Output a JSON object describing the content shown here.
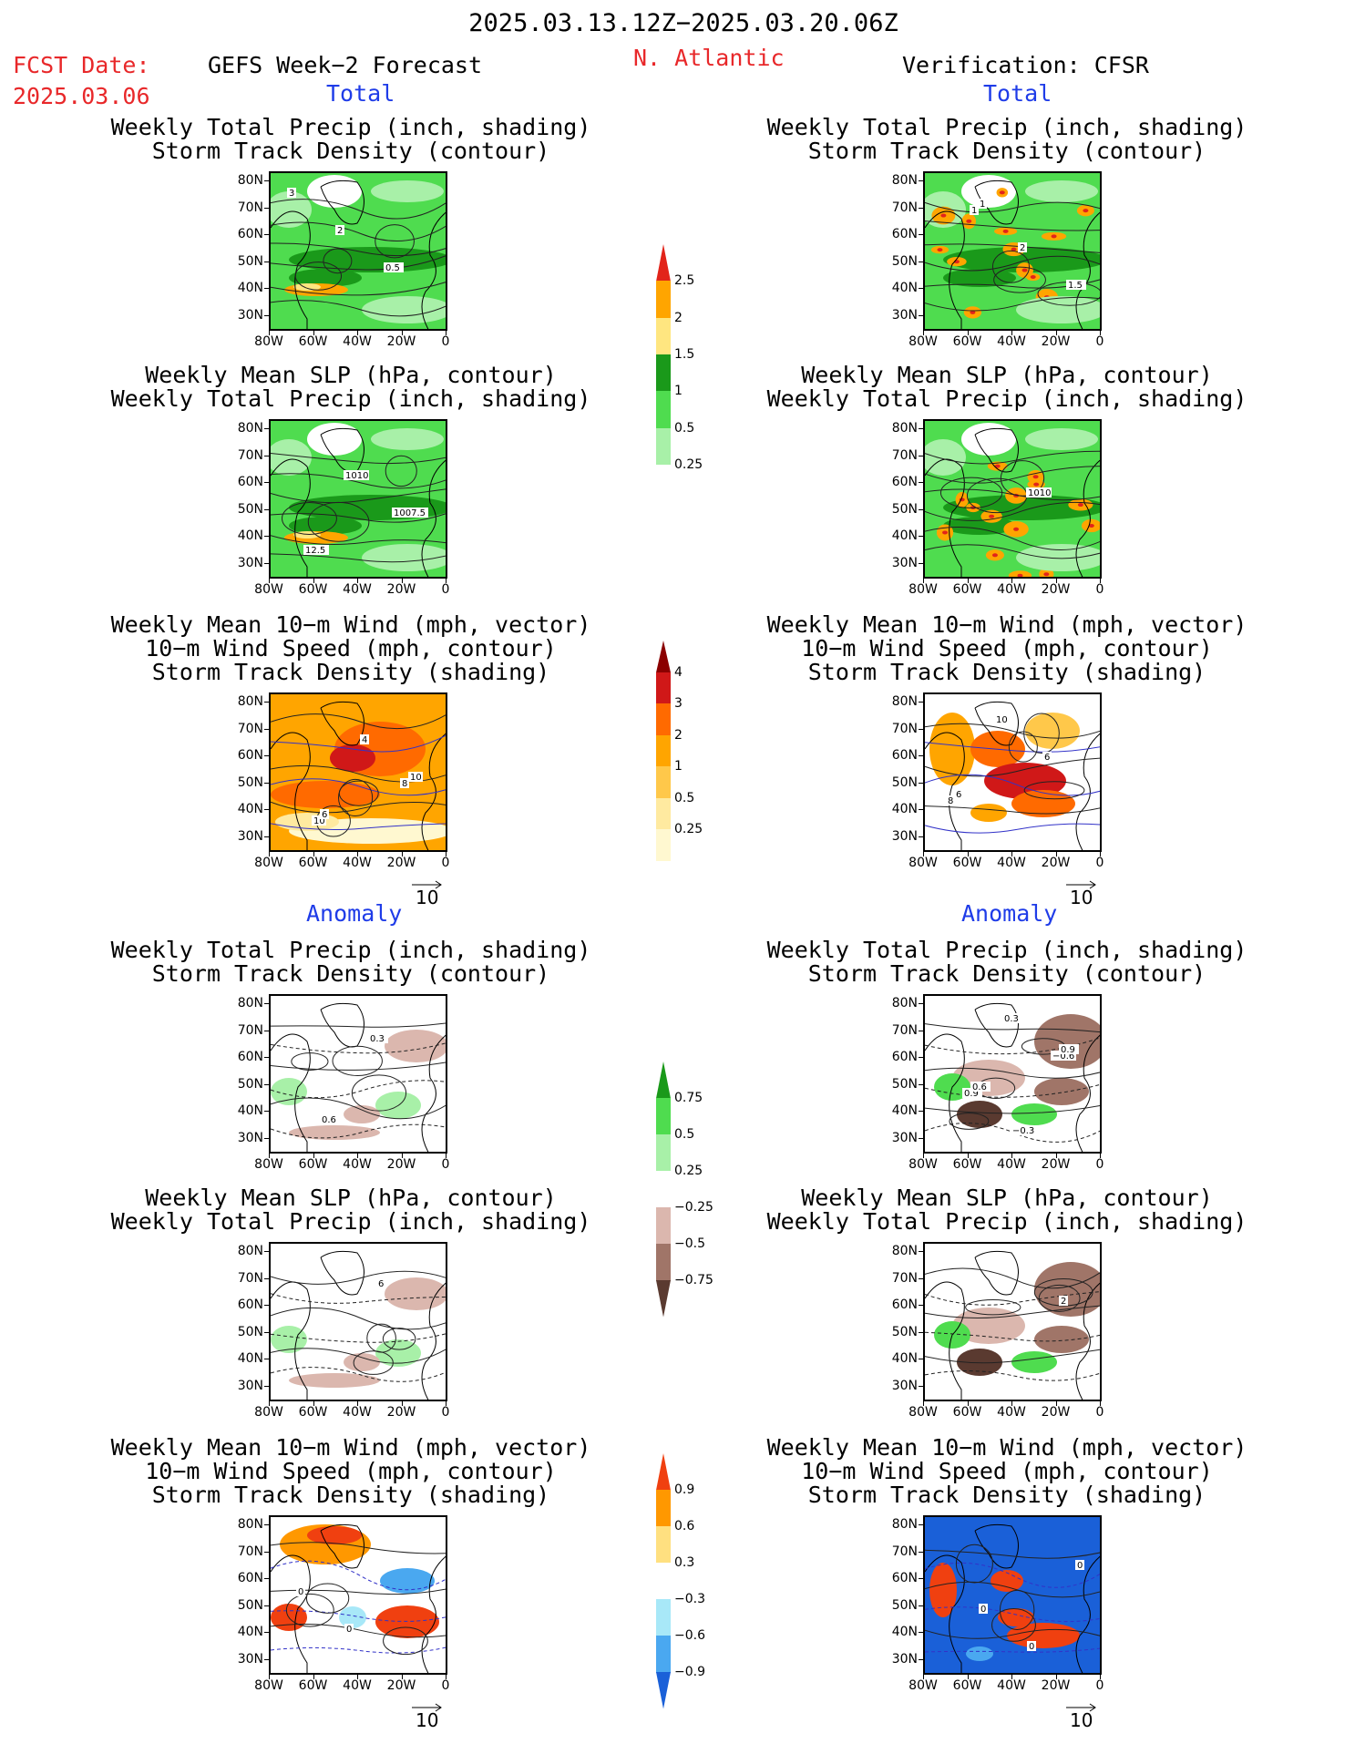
{
  "header": {
    "date_range": "2025.03.13.12Z−2025.03.20.06Z",
    "fcst_label": "FCST Date:",
    "fcst_date": "2025.03.06",
    "model_title": "GEFS Week−2 Forecast",
    "region": "N. Atlantic",
    "verification": "Verification: CFSR",
    "total_label": "Total",
    "anomaly_label": "Anomaly"
  },
  "panel_titles": {
    "precip_track": [
      "Weekly Total Precip (inch, shading)",
      "Storm Track Density (contour)"
    ],
    "slp_precip": [
      "Weekly Mean SLP (hPa, contour)",
      "Weekly Total Precip (inch, shading)"
    ],
    "wind_track": [
      "Weekly Mean 10−m Wind (mph, vector)",
      "10−m Wind Speed (mph, contour)",
      "Storm Track Density (shading)"
    ]
  },
  "axes": {
    "lat_labels": [
      "80N",
      "70N",
      "60N",
      "50N",
      "40N",
      "30N"
    ],
    "lon_labels": [
      "80W",
      "60W",
      "40W",
      "20W",
      "0"
    ]
  },
  "vector_ref": "10",
  "colorbars": {
    "precip_total": {
      "labels": [
        "2.5",
        "2",
        "1.5",
        "1",
        "0.5",
        "0.25"
      ],
      "colors": [
        "#e2241a",
        "#ffa500",
        "#ffe680",
        "#1a991a",
        "#4fdc4f",
        "#a8f0a8"
      ]
    },
    "track_total": {
      "labels": [
        "4",
        "3",
        "2",
        "1",
        "0.5",
        "0.25"
      ],
      "colors": [
        "#8b0000",
        "#d01818",
        "#ff6a00",
        "#ffa500",
        "#ffc84a",
        "#ffeaa0",
        "#fff8d0"
      ]
    },
    "precip_anom": {
      "labels": [
        "0.75",
        "0.5",
        "0.25",
        "−0.25",
        "−0.5",
        "−0.75"
      ],
      "colors": [
        "#1a991a",
        "#4fdc4f",
        "#a8f0a8",
        "#ffffff",
        "#dbb7ae",
        "#a07568",
        "#5a3a30"
      ]
    },
    "track_anom": {
      "labels": [
        "0.9",
        "0.6",
        "0.3",
        "−0.3",
        "−0.6",
        "−0.9"
      ],
      "colors": [
        "#f04010",
        "#ff9800",
        "#ffe080",
        "#ffffff",
        "#a8e8f8",
        "#4aa8f0",
        "#1a60d8"
      ]
    }
  },
  "contour_labels": {
    "f_total_precip": [
      "3",
      "2",
      "0.5"
    ],
    "v_total_precip": [
      "1",
      "2",
      "1.5",
      "1"
    ],
    "f_total_slp": [
      "1010",
      "1007.5",
      "12.5"
    ],
    "v_total_slp": [
      "1010"
    ],
    "f_total_wind": [
      "8",
      "10",
      "4",
      "10",
      "6"
    ],
    "v_total_wind": [
      "8",
      "10",
      "6",
      "6"
    ],
    "f_anom_precip": [
      "0.6",
      "0.3"
    ],
    "v_anom_precip": [
      "0.3",
      "−0.6",
      "0.9",
      "−0.3",
      "0.9",
      "0.6"
    ],
    "f_anom_slp": [
      "6"
    ],
    "v_anom_slp": [
      "2"
    ],
    "f_anom_wind": [
      "0",
      "0"
    ],
    "v_anom_wind": [
      "0",
      "0",
      "0"
    ]
  }
}
